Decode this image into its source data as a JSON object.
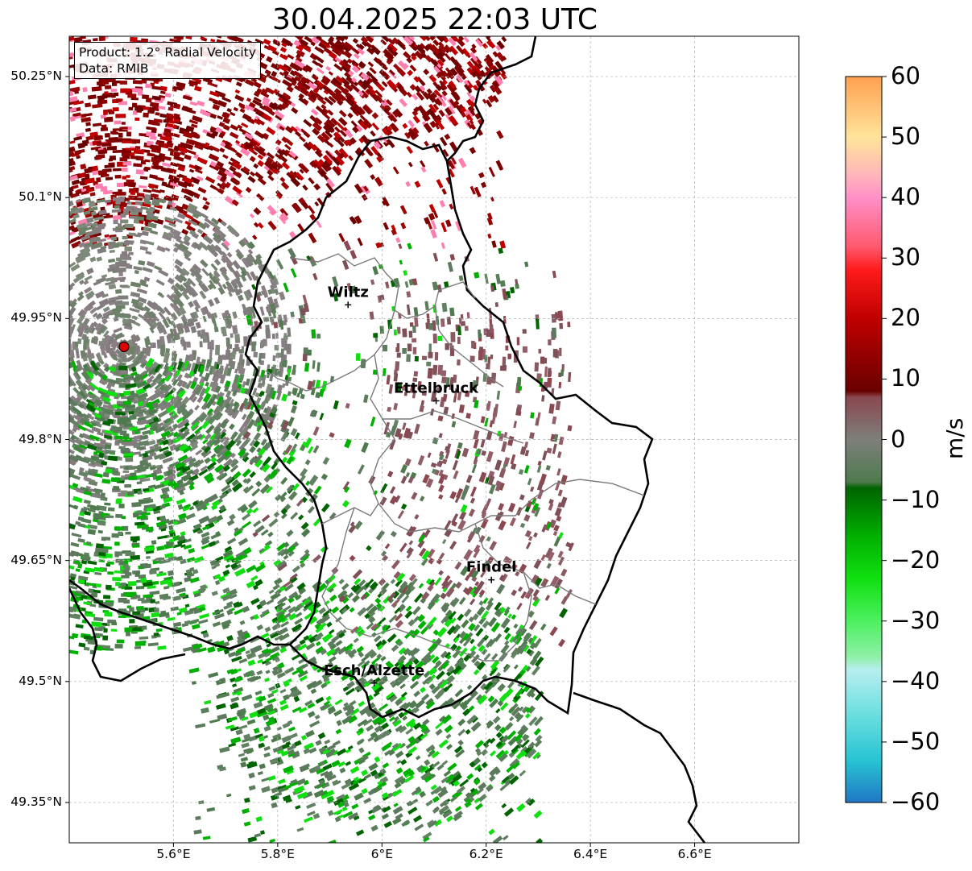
{
  "title": "30.04.2025 22:03 UTC",
  "info": {
    "line1": "Product: 1.2° Radial Velocity",
    "line2": "Data: RMIB"
  },
  "map": {
    "lon_range": [
      5.4,
      6.8
    ],
    "lat_range": [
      49.3,
      50.3
    ],
    "lat_ticks": [
      {
        "value": 50.25,
        "label": "50.25°N"
      },
      {
        "value": 50.1,
        "label": "50.1°N"
      },
      {
        "value": 49.95,
        "label": "49.95°N"
      },
      {
        "value": 49.8,
        "label": "49.8°N"
      },
      {
        "value": 49.65,
        "label": "49.65°N"
      },
      {
        "value": 49.5,
        "label": "49.5°N"
      },
      {
        "value": 49.35,
        "label": "49.35°N"
      }
    ],
    "lon_ticks": [
      {
        "value": 5.6,
        "label": "5.6°E"
      },
      {
        "value": 5.8,
        "label": "5.8°E"
      },
      {
        "value": 6.0,
        "label": "6°E"
      },
      {
        "value": 6.2,
        "label": "6.2°E"
      },
      {
        "value": 6.4,
        "label": "6.4°E"
      },
      {
        "value": 6.6,
        "label": "6.6°E"
      }
    ],
    "radar_site": {
      "lon": 5.505,
      "lat": 49.915,
      "color": "#e00000"
    },
    "cities": [
      {
        "name": "Wiltz",
        "lon": 5.935,
        "lat": 49.967
      },
      {
        "name": "Ettelbruck",
        "lon": 6.104,
        "lat": 49.848
      },
      {
        "name": "Findel",
        "lon": 6.21,
        "lat": 49.626
      },
      {
        "name": "Esch/Alzette",
        "lon": 5.985,
        "lat": 49.498
      }
    ]
  },
  "colorbar": {
    "label": "m/s",
    "min": -60,
    "max": 60,
    "ticks": [
      {
        "value": 60,
        "label": "60"
      },
      {
        "value": 50,
        "label": "50"
      },
      {
        "value": 40,
        "label": "40"
      },
      {
        "value": 30,
        "label": "30"
      },
      {
        "value": 20,
        "label": "20"
      },
      {
        "value": 10,
        "label": "10"
      },
      {
        "value": 0,
        "label": "0"
      },
      {
        "value": -10,
        "label": "−10"
      },
      {
        "value": -20,
        "label": "−20"
      },
      {
        "value": -30,
        "label": "−30"
      },
      {
        "value": -40,
        "label": "−40"
      },
      {
        "value": -50,
        "label": "−50"
      },
      {
        "value": -60,
        "label": "−60"
      }
    ],
    "stops": [
      {
        "value": -60,
        "color": "#1f77c4"
      },
      {
        "value": -53,
        "color": "#27c4d4"
      },
      {
        "value": -45,
        "color": "#6fe0e0"
      },
      {
        "value": -38,
        "color": "#b8eef0"
      },
      {
        "value": -36,
        "color": "#90f0a8"
      },
      {
        "value": -30,
        "color": "#4cf060"
      },
      {
        "value": -23,
        "color": "#10e010"
      },
      {
        "value": -16,
        "color": "#00b000"
      },
      {
        "value": -8,
        "color": "#006400"
      },
      {
        "value": -7,
        "color": "#4e7a4e"
      },
      {
        "value": 0,
        "color": "#7e7f7a"
      },
      {
        "value": 7,
        "color": "#8a4850"
      },
      {
        "value": 8,
        "color": "#6a0000"
      },
      {
        "value": 20,
        "color": "#c00000"
      },
      {
        "value": 28,
        "color": "#ff1a1a"
      },
      {
        "value": 32,
        "color": "#ff5a70"
      },
      {
        "value": 40,
        "color": "#ff90c8"
      },
      {
        "value": 44,
        "color": "#ffb8b8"
      },
      {
        "value": 50,
        "color": "#ffe49a"
      },
      {
        "value": 60,
        "color": "#ffa050"
      }
    ]
  }
}
